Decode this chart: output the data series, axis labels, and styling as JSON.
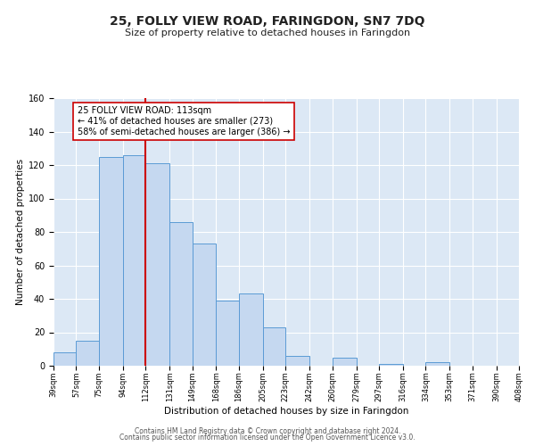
{
  "title": "25, FOLLY VIEW ROAD, FARINGDON, SN7 7DQ",
  "subtitle": "Size of property relative to detached houses in Faringdon",
  "xlabel": "Distribution of detached houses by size in Faringdon",
  "ylabel": "Number of detached properties",
  "bin_edges": [
    39,
    57,
    75,
    94,
    112,
    131,
    149,
    168,
    186,
    205,
    223,
    242,
    260,
    279,
    297,
    316,
    334,
    353,
    371,
    390,
    408
  ],
  "bar_heights": [
    8,
    15,
    125,
    126,
    121,
    86,
    73,
    39,
    43,
    23,
    6,
    0,
    5,
    0,
    1,
    0,
    2,
    0,
    0,
    0
  ],
  "bar_color": "#c5d8f0",
  "bar_edge_color": "#5b9bd5",
  "property_line_x": 112,
  "property_line_color": "#cc0000",
  "annotation_text": "25 FOLLY VIEW ROAD: 113sqm\n← 41% of detached houses are smaller (273)\n58% of semi-detached houses are larger (386) →",
  "annotation_box_color": "#ffffff",
  "annotation_box_edge_color": "#cc0000",
  "ylim": [
    0,
    160
  ],
  "yticks": [
    0,
    20,
    40,
    60,
    80,
    100,
    120,
    140,
    160
  ],
  "bg_color": "#dce8f5",
  "grid_color": "#ffffff",
  "footer_line1": "Contains HM Land Registry data © Crown copyright and database right 2024.",
  "footer_line2": "Contains public sector information licensed under the Open Government Licence v3.0."
}
